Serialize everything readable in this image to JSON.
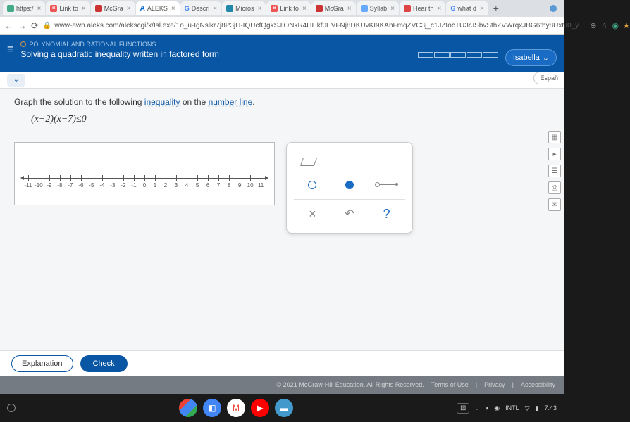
{
  "browser": {
    "tabs": [
      {
        "label": "https:/",
        "fav_color": "#4a8",
        "close": "×"
      },
      {
        "label": "Link to",
        "fav_color": "#e55",
        "close": "×"
      },
      {
        "label": "McGra",
        "fav_color": "#c33",
        "close": "×"
      },
      {
        "label": "ALEKS",
        "fav_color": "#06c",
        "close": "×",
        "active": true,
        "prefix": "A"
      },
      {
        "label": "Descri",
        "fav_color": "#4285f4",
        "close": "×",
        "prefix": "G"
      },
      {
        "label": "Micros",
        "fav_color": "#28a",
        "close": "×"
      },
      {
        "label": "Link to",
        "fav_color": "#e55",
        "close": "×"
      },
      {
        "label": "McGra",
        "fav_color": "#c33",
        "close": "×"
      },
      {
        "label": "Syllab",
        "fav_color": "#6af",
        "close": "×"
      },
      {
        "label": "Hear th",
        "fav_color": "#d44",
        "close": "×"
      },
      {
        "label": "what d",
        "fav_color": "#4285f4",
        "close": "×",
        "prefix": "G"
      }
    ],
    "plus": "+",
    "url": "www-awn.aleks.com/alekscgi/x/Isl.exe/1o_u-IgNslkr7j8P3jH-IQUcfQgkSJlONkR4HHkf0EVFNj8DKUvKI9KAnFmqZVC3j_c1JZtocTU3rJSbvSthZVWrqxJBG6thy8UxtJ0_y…",
    "nav": {
      "back": "←",
      "fwd": "→",
      "reload": "⟳"
    },
    "ext": {
      "search": "⊕",
      "star": "☆",
      "green": "◉",
      "puzzle": "★"
    }
  },
  "aleks": {
    "topic_label": "POLYNOMIAL AND RATIONAL FUNCTIONS",
    "topic_name": "Solving a quadratic inequality written in factored form",
    "user": "Isabella",
    "chevron": "⌄",
    "espanol": "Españ"
  },
  "problem": {
    "instr_pre": "Graph the solution to the following",
    "kw1": "inequality",
    "instr_mid": "on the",
    "kw2": "number line",
    "instr_end": ".",
    "expression": "(x−2)(x−7)≤0",
    "ticks": [
      "-11",
      "-10",
      "-9",
      "-8",
      "-7",
      "-6",
      "-5",
      "-4",
      "-3",
      "-2",
      "-1",
      "0",
      "1",
      "2",
      "3",
      "4",
      "5",
      "6",
      "7",
      "8",
      "9",
      "10",
      "11"
    ]
  },
  "tools": {
    "clear": "×",
    "undo": "↶",
    "help": "?"
  },
  "footer": {
    "explain": "Explanation",
    "check": "Check",
    "copyright": "© 2021 McGraw-Hill Education. All Rights Reserved.",
    "tou": "Terms of Use",
    "privacy": "Privacy",
    "access": "Accessibility"
  },
  "taskbar": {
    "intl": "INTL",
    "time": "7:43",
    "icons": {
      "wifi": "▽",
      "batt": "▮"
    }
  }
}
